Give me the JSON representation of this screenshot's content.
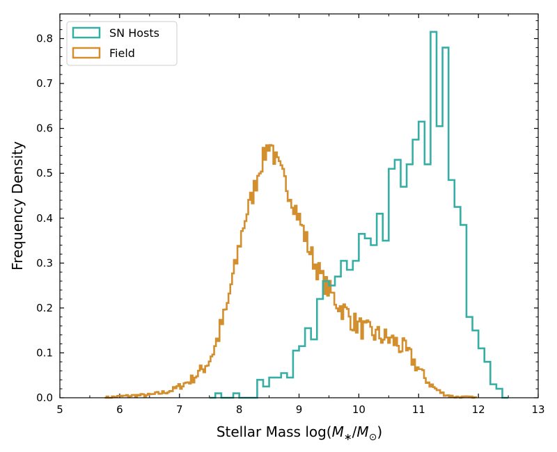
{
  "chart_data": {
    "type": "histogram",
    "xlabel": "Stellar Mass log(M∗/M⊙)",
    "ylabel": "Frequency Density",
    "xlim": [
      5,
      13
    ],
    "ylim": [
      0,
      0.855
    ],
    "x_ticks": [
      "5",
      "6",
      "7",
      "8",
      "9",
      "10",
      "11",
      "12",
      "13"
    ],
    "y_ticks": [
      "0.0",
      "0.1",
      "0.2",
      "0.3",
      "0.4",
      "0.5",
      "0.6",
      "0.7",
      "0.8"
    ],
    "legend_location": "upper left",
    "grid": false,
    "series": [
      {
        "name": "SN Hosts",
        "color": "#35AFA6",
        "style": "step",
        "bin_width": 0.1,
        "bin_edges_start": 7.5,
        "values": [
          0,
          0.01,
          0,
          0,
          0.01,
          0,
          0,
          0,
          0.04,
          0.025,
          0.045,
          0.045,
          0.055,
          0.045,
          0.105,
          0.115,
          0.155,
          0.13,
          0.22,
          0.26,
          0.25,
          0.27,
          0.305,
          0.285,
          0.305,
          0.365,
          0.355,
          0.34,
          0.41,
          0.35,
          0.51,
          0.53,
          0.47,
          0.52,
          0.575,
          0.615,
          0.52,
          0.815,
          0.605,
          0.78,
          0.485,
          0.425,
          0.385,
          0.18,
          0.15,
          0.11,
          0.08,
          0.03,
          0.02,
          0
        ]
      },
      {
        "name": "Field",
        "color": "#D38E2D",
        "style": "step",
        "x": [
          5.75,
          6.0,
          6.25,
          6.5,
          6.75,
          6.9,
          7.0,
          7.2,
          7.4,
          7.5,
          7.6,
          7.7,
          7.8,
          7.85,
          7.9,
          7.95,
          8.0,
          8.1,
          8.2,
          8.3,
          8.35,
          8.4,
          8.45,
          8.5,
          8.55,
          8.6,
          8.7,
          8.8,
          8.9,
          9.0,
          9.1,
          9.2,
          9.3,
          9.4,
          9.5,
          9.6,
          9.7,
          9.8,
          9.9,
          10.0,
          10.1,
          10.2,
          10.3,
          10.4,
          10.5,
          10.6,
          10.7,
          10.8,
          10.9,
          11.0,
          11.1,
          11.2,
          11.3,
          11.4,
          11.5,
          11.6,
          11.8,
          11.95
        ],
        "y": [
          0.0,
          0.003,
          0.005,
          0.006,
          0.012,
          0.018,
          0.025,
          0.04,
          0.065,
          0.085,
          0.115,
          0.16,
          0.2,
          0.245,
          0.27,
          0.3,
          0.34,
          0.4,
          0.44,
          0.49,
          0.52,
          0.53,
          0.55,
          0.57,
          0.56,
          0.53,
          0.5,
          0.47,
          0.44,
          0.4,
          0.36,
          0.32,
          0.29,
          0.26,
          0.24,
          0.22,
          0.2,
          0.19,
          0.17,
          0.16,
          0.15,
          0.145,
          0.14,
          0.135,
          0.13,
          0.125,
          0.115,
          0.1,
          0.085,
          0.065,
          0.045,
          0.03,
          0.018,
          0.01,
          0.005,
          0.002,
          0.001,
          0.0
        ],
        "noise": 0.025,
        "step_width": 0.03
      }
    ]
  }
}
